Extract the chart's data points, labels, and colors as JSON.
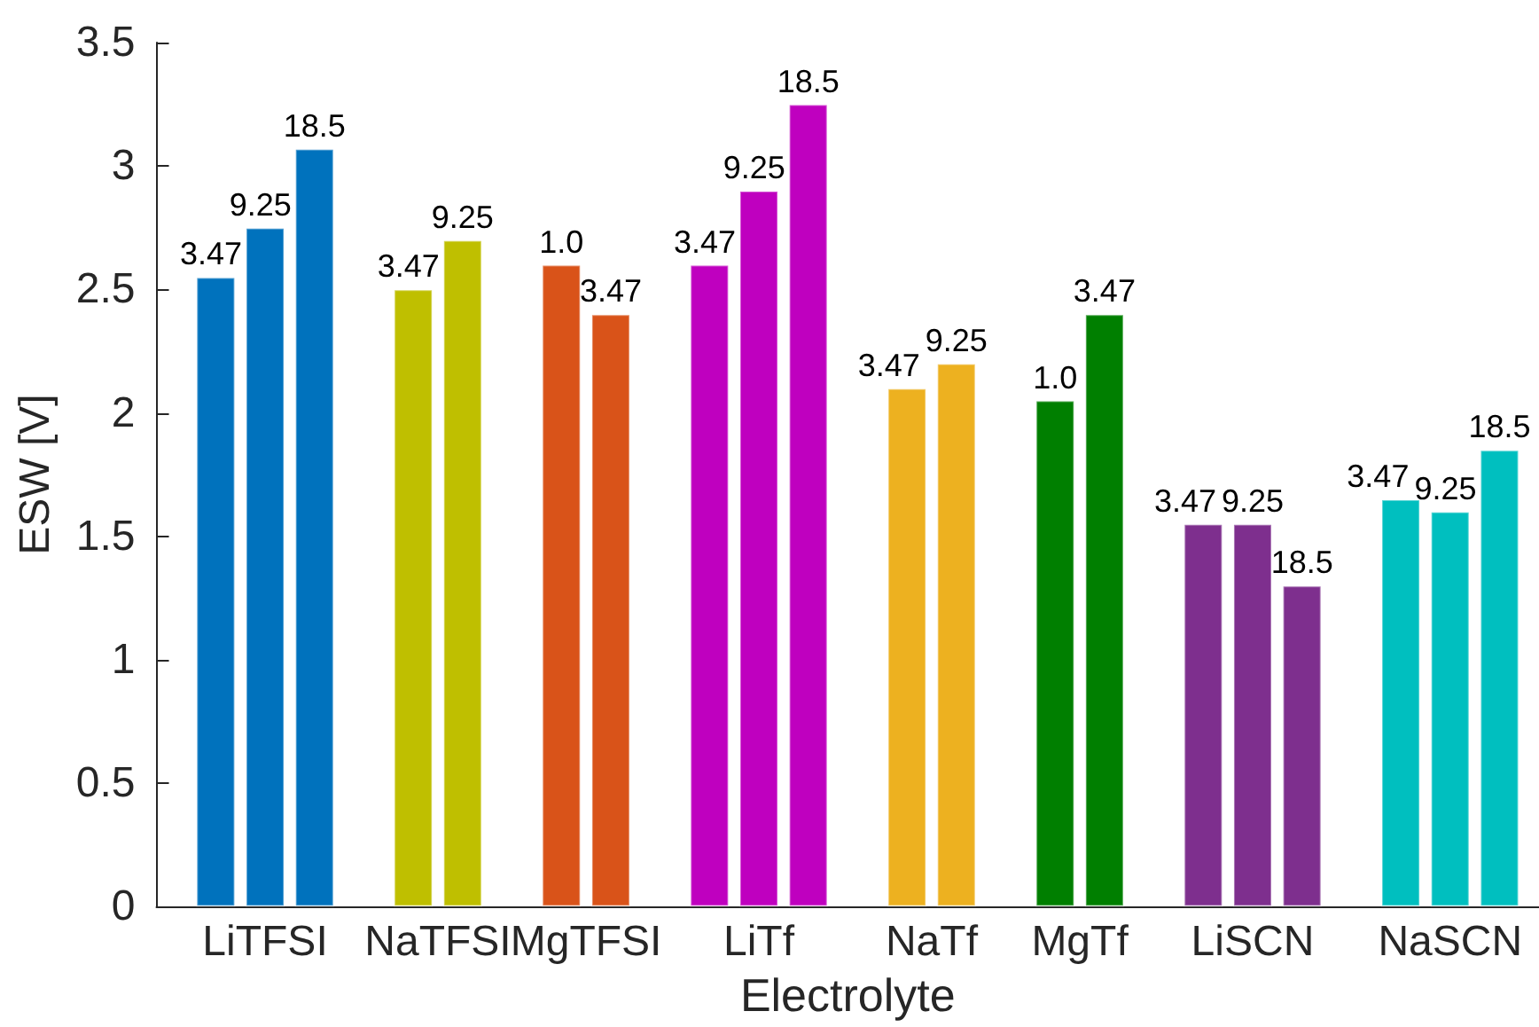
{
  "chart_data": {
    "type": "bar",
    "xlabel": "Electrolyte",
    "ylabel": "ESW [V]",
    "categories": [
      "LiTFSI",
      "NaTFSI",
      "MgTFSI",
      "LiTf",
      "NaTf",
      "MgTf",
      "LiSCN",
      "NaSCN"
    ],
    "series": [
      {
        "name": "1.0",
        "values": [
          null,
          null,
          2.6,
          null,
          null,
          2.05,
          null,
          null
        ],
        "colors": [
          null,
          null,
          "#d95319",
          null,
          null,
          "#007f00",
          null,
          null
        ]
      },
      {
        "name": "3.47",
        "values": [
          2.55,
          2.5,
          2.4,
          2.6,
          2.1,
          2.4,
          1.55,
          1.65
        ],
        "colors": [
          "#0072bd",
          "#bfbf00",
          "#d95319",
          "#bf00bf",
          "#edb120",
          "#007f00",
          "#7e2f8e",
          "#00bfbf"
        ]
      },
      {
        "name": "9.25",
        "values": [
          2.75,
          2.7,
          null,
          2.9,
          2.2,
          null,
          1.55,
          1.6
        ],
        "colors": [
          "#0072bd",
          "#bfbf00",
          null,
          "#bf00bf",
          "#edb120",
          null,
          "#7e2f8e",
          "#00bfbf"
        ]
      },
      {
        "name": "18.5",
        "values": [
          3.07,
          null,
          null,
          3.25,
          null,
          null,
          1.3,
          1.85
        ],
        "colors": [
          "#0072bd",
          null,
          null,
          "#bf00bf",
          null,
          null,
          "#7e2f8e",
          "#00bfbf"
        ]
      }
    ],
    "ylim": [
      0,
      3.5
    ],
    "yticks": [
      0,
      0.5,
      1,
      1.5,
      2,
      2.5,
      3,
      3.5
    ]
  }
}
